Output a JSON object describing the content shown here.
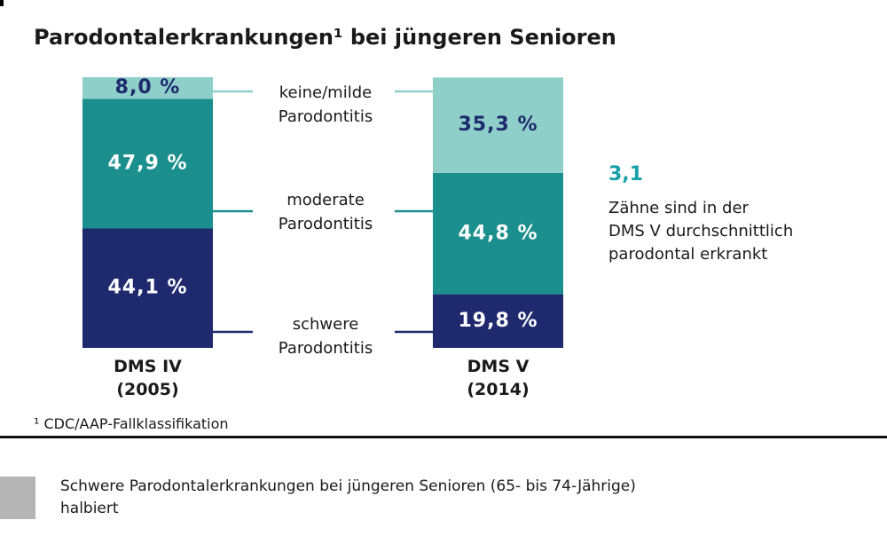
{
  "chart_data": {
    "type": "stacked_bar",
    "title": "Parodontalerkrankungen¹ bei jüngeren Senioren",
    "categories": [
      "DMS IV (2005)",
      "DMS V (2014)"
    ],
    "ylim": [
      0,
      100
    ],
    "series": [
      {
        "name": "schwere Parodontitis",
        "color": "#1f2a6e",
        "label_color": "#ffffff",
        "values": [
          44.1,
          19.8
        ],
        "value_labels": [
          "44,1 %",
          "19,8 %"
        ]
      },
      {
        "name": "moderate Parodontitis",
        "color": "#1a8f8d",
        "label_color": "#ffffff",
        "values": [
          47.9,
          44.8
        ],
        "value_labels": [
          "47,9 %",
          "44,8 %"
        ]
      },
      {
        "name": "keine/milde Parodontitis",
        "color": "#8fcfca",
        "label_color": "#1f2a6e",
        "values": [
          8.0,
          35.3
        ],
        "value_labels": [
          "8,0 %",
          "35,3 %"
        ]
      }
    ],
    "annotation": {
      "value": "3,1",
      "lines": [
        "Zähne sind in der",
        "DMS V durchschnittlich",
        "parodontal erkrankt"
      ]
    },
    "footnote": "¹ CDC/AAP-Fallklassifikation"
  },
  "caption": {
    "lines": [
      "Schwere Parodontalerkrankungen bei jüngeren Senioren (65- bis 74-Jährige)",
      "halbiert"
    ]
  }
}
